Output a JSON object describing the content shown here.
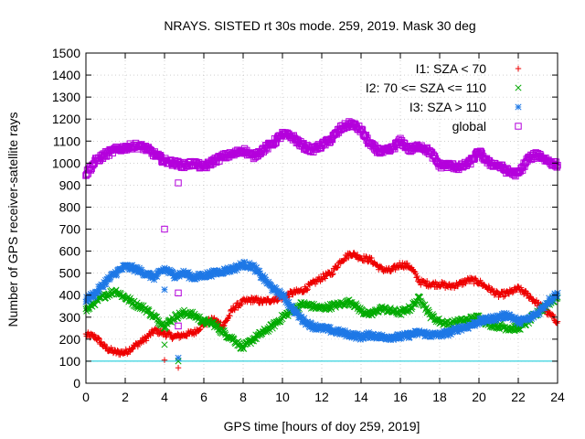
{
  "chart_data": {
    "type": "scatter",
    "title": "NRAYS. SISTED rt 30s mode. 259, 2019. Mask 30 deg",
    "xlabel": "GPS time [hours of doy 259, 2019]",
    "ylabel": "Number of GPS receiver-satellite rays",
    "xlim": [
      0,
      24
    ],
    "ylim": [
      0,
      1500
    ],
    "x_ticks": [
      0,
      2,
      4,
      6,
      8,
      10,
      12,
      14,
      16,
      18,
      20,
      22,
      24
    ],
    "y_ticks": [
      0,
      100,
      200,
      300,
      400,
      500,
      600,
      700,
      800,
      900,
      1000,
      1100,
      1200,
      1300,
      1400,
      1500
    ],
    "legend_position": "top-right",
    "reference_line": {
      "y": 100,
      "color": "#00c8d8"
    },
    "series": [
      {
        "name": "I1: SZA < 70",
        "marker": "plus",
        "color": "#ee0000",
        "x": [
          0,
          0.5,
          1,
          1.5,
          2,
          2.5,
          3,
          3.5,
          4,
          4.5,
          5,
          5.5,
          6,
          6.5,
          7,
          7.5,
          8,
          8.5,
          9,
          9.5,
          10,
          10.5,
          11,
          11.5,
          12,
          12.5,
          13,
          13.5,
          14,
          14.5,
          15,
          15.5,
          16,
          16.5,
          17,
          17.5,
          18,
          18.5,
          19,
          19.5,
          20,
          20.5,
          21,
          21.5,
          22,
          22.5,
          23,
          23.5,
          24
        ],
        "values": [
          220,
          210,
          160,
          140,
          140,
          170,
          200,
          240,
          225,
          210,
          220,
          230,
          270,
          290,
          260,
          340,
          370,
          380,
          370,
          380,
          390,
          410,
          420,
          450,
          480,
          500,
          560,
          590,
          570,
          560,
          520,
          510,
          540,
          530,
          460,
          450,
          450,
          440,
          450,
          470,
          460,
          430,
          400,
          410,
          430,
          400,
          360,
          320,
          280
        ],
        "outliers": [
          {
            "x": 4.0,
            "y": 105
          },
          {
            "x": 4.7,
            "y": 70
          }
        ]
      },
      {
        "name": "I2: 70 <= SZA <= 110",
        "marker": "x",
        "color": "#00aa00",
        "x": [
          0,
          0.5,
          1,
          1.5,
          2,
          2.5,
          3,
          3.5,
          4,
          4.5,
          5,
          5.5,
          6,
          6.5,
          7,
          7.5,
          8,
          8.5,
          9,
          9.5,
          10,
          10.5,
          11,
          11.5,
          12,
          12.5,
          13,
          13.5,
          14,
          14.5,
          15,
          15.5,
          16,
          16.5,
          17,
          17.5,
          18,
          18.5,
          19,
          19.5,
          20,
          20.5,
          21,
          21.5,
          22,
          22.5,
          23,
          23.5,
          24
        ],
        "values": [
          330,
          370,
          400,
          420,
          390,
          360,
          340,
          300,
          260,
          300,
          320,
          310,
          280,
          270,
          230,
          200,
          160,
          200,
          230,
          260,
          300,
          330,
          360,
          350,
          340,
          350,
          360,
          370,
          330,
          310,
          340,
          330,
          320,
          340,
          390,
          310,
          280,
          270,
          280,
          290,
          300,
          270,
          260,
          250,
          250,
          280,
          320,
          360,
          390
        ],
        "outliers": [
          {
            "x": 4.0,
            "y": 175
          },
          {
            "x": 4.7,
            "y": 100
          }
        ]
      },
      {
        "name": "I3: SZA > 110",
        "marker": "star",
        "color": "#1e78e6",
        "x": [
          0,
          0.5,
          1,
          1.5,
          2,
          2.5,
          3,
          3.5,
          4,
          4.5,
          5,
          5.5,
          6,
          6.5,
          7,
          7.5,
          8,
          8.5,
          9,
          9.5,
          10,
          10.5,
          11,
          11.5,
          12,
          12.5,
          13,
          13.5,
          14,
          14.5,
          15,
          15.5,
          16,
          16.5,
          17,
          17.5,
          18,
          18.5,
          19,
          19.5,
          20,
          20.5,
          21,
          21.5,
          22,
          22.5,
          23,
          23.5,
          24
        ],
        "values": [
          380,
          410,
          460,
          500,
          530,
          520,
          500,
          480,
          520,
          490,
          500,
          480,
          490,
          500,
          510,
          520,
          540,
          530,
          480,
          430,
          400,
          340,
          290,
          260,
          250,
          240,
          230,
          220,
          210,
          220,
          210,
          210,
          210,
          220,
          230,
          220,
          220,
          230,
          250,
          260,
          280,
          290,
          300,
          310,
          280,
          290,
          320,
          370,
          410
        ],
        "outliers": [
          {
            "x": 4.0,
            "y": 425
          },
          {
            "x": 4.7,
            "y": 115
          }
        ]
      },
      {
        "name": "global",
        "marker": "square",
        "color": "#b400dc",
        "x": [
          0,
          0.5,
          1,
          1.5,
          2,
          2.5,
          3,
          3.5,
          4,
          4.5,
          5,
          5.5,
          6,
          6.5,
          7,
          7.5,
          8,
          8.5,
          9,
          9.5,
          10,
          10.5,
          11,
          11.5,
          12,
          12.5,
          13,
          13.5,
          14,
          14.5,
          15,
          15.5,
          16,
          16.5,
          17,
          17.5,
          18,
          18.5,
          19,
          19.5,
          20,
          20.5,
          21,
          21.5,
          22,
          22.5,
          23,
          23.5,
          24
        ],
        "values": [
          950,
          1010,
          1040,
          1060,
          1070,
          1080,
          1070,
          1040,
          1010,
          1000,
          990,
          1000,
          980,
          1010,
          1030,
          1040,
          1060,
          1030,
          1060,
          1090,
          1130,
          1120,
          1080,
          1060,
          1080,
          1110,
          1160,
          1180,
          1150,
          1080,
          1050,
          1060,
          1100,
          1060,
          1080,
          1050,
          990,
          990,
          980,
          1000,
          1050,
          1000,
          990,
          960,
          950,
          1020,
          1040,
          1010,
          990
        ],
        "outliers": [
          {
            "x": 4.0,
            "y": 700
          },
          {
            "x": 4.7,
            "y": 410
          },
          {
            "x": 4.7,
            "y": 260
          },
          {
            "x": 4.7,
            "y": 910
          }
        ]
      }
    ]
  }
}
